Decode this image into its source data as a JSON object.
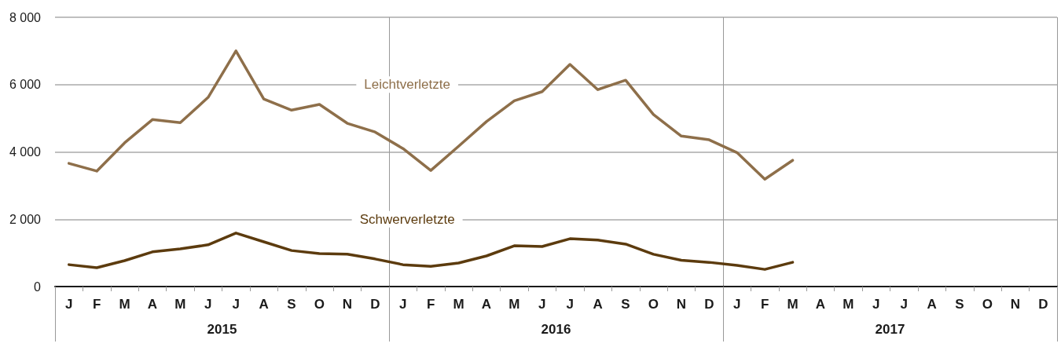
{
  "chart_data": {
    "type": "line",
    "categories": [
      "J",
      "F",
      "M",
      "A",
      "M",
      "J",
      "J",
      "A",
      "S",
      "O",
      "N",
      "D",
      "J",
      "F",
      "M",
      "A",
      "M",
      "J",
      "J",
      "A",
      "S",
      "O",
      "N",
      "D",
      "J",
      "F",
      "M",
      "A",
      "M",
      "J",
      "J",
      "A",
      "S",
      "O",
      "N",
      "D"
    ],
    "series": [
      {
        "name": "Leichtverletzte",
        "color": "#8e6f4a",
        "values": [
          3660,
          3430,
          4270,
          4960,
          4870,
          5620,
          7000,
          5570,
          5240,
          5410,
          4850,
          4590,
          4100,
          3450,
          4170,
          4900,
          5520,
          5790,
          6600,
          5850,
          6130,
          5110,
          4470,
          4360,
          3980,
          3190,
          3750,
          null,
          null,
          null,
          null,
          null,
          null,
          null,
          null,
          null
        ]
      },
      {
        "name": "Schwerverletzte",
        "color": "#5c3b0e",
        "values": [
          650,
          560,
          770,
          1030,
          1120,
          1240,
          1590,
          1330,
          1070,
          980,
          960,
          820,
          650,
          600,
          700,
          910,
          1210,
          1190,
          1420,
          1380,
          1260,
          960,
          780,
          720,
          630,
          510,
          720,
          null,
          null,
          null,
          null,
          null,
          null,
          null,
          null,
          null
        ]
      }
    ],
    "ylim": [
      0,
      8000
    ],
    "yticks": [
      0,
      {
        "value": 2000,
        "label": "2 000"
      },
      {
        "value": 4000,
        "label": "4 000"
      },
      {
        "value": 6000,
        "label": "6 000"
      },
      {
        "value": 8000,
        "label": "8 000"
      }
    ],
    "grid": "y",
    "legend": false,
    "marker": "none",
    "line_style": "solid",
    "annotations": [
      "2015",
      "2016",
      "2017"
    ]
  }
}
